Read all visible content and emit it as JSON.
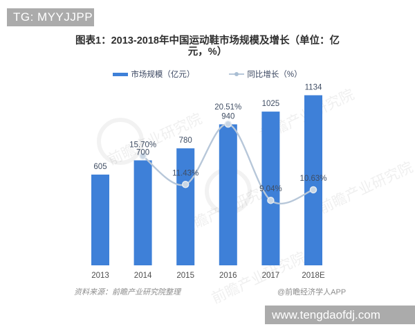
{
  "header": {
    "badge": "TG: MYYJJPP"
  },
  "chart": {
    "title": "图表1：2013-2018年中国运动鞋市场规模及增长（单位：亿元，%）",
    "legend_market": "市场规模（亿元）",
    "legend_growth": "同比增长（%）",
    "source_left": "资料来源：前瞻产业研究院整理",
    "source_right": "@前瞻经济学人APP"
  },
  "chart_data": {
    "type": "bar",
    "title": "图表1：2013-2018年中国运动鞋市场规模及增长（单位：亿元，%）",
    "categories": [
      "2013",
      "2014",
      "2015",
      "2016",
      "2017",
      "2018E"
    ],
    "series": [
      {
        "name": "市场规模（亿元）",
        "type": "bar",
        "values": [
          605,
          700,
          780,
          940,
          1025,
          1134
        ]
      },
      {
        "name": "同比增长（%）",
        "type": "line",
        "values": [
          null,
          15.7,
          11.43,
          20.51,
          9.04,
          10.63
        ],
        "labels": [
          "",
          "15.70%",
          "11.43%",
          "20.51%",
          "9.04%",
          "10.63%"
        ]
      }
    ],
    "xlabel": "",
    "ylabel": "",
    "axes_visible": false,
    "grid": false,
    "legend_position": "top",
    "colors": {
      "bar": "#3E80D8",
      "line": "#B7C7D9",
      "marker_fill": "#C9D6E4",
      "marker_edge": "#E4EBF2",
      "data_label": "#3F4D63",
      "axis_label": "#4D4D4D"
    }
  },
  "watermark": {
    "text": "前瞻产业研究院"
  },
  "footer": {
    "url": "www.tengdaofdj.com"
  }
}
